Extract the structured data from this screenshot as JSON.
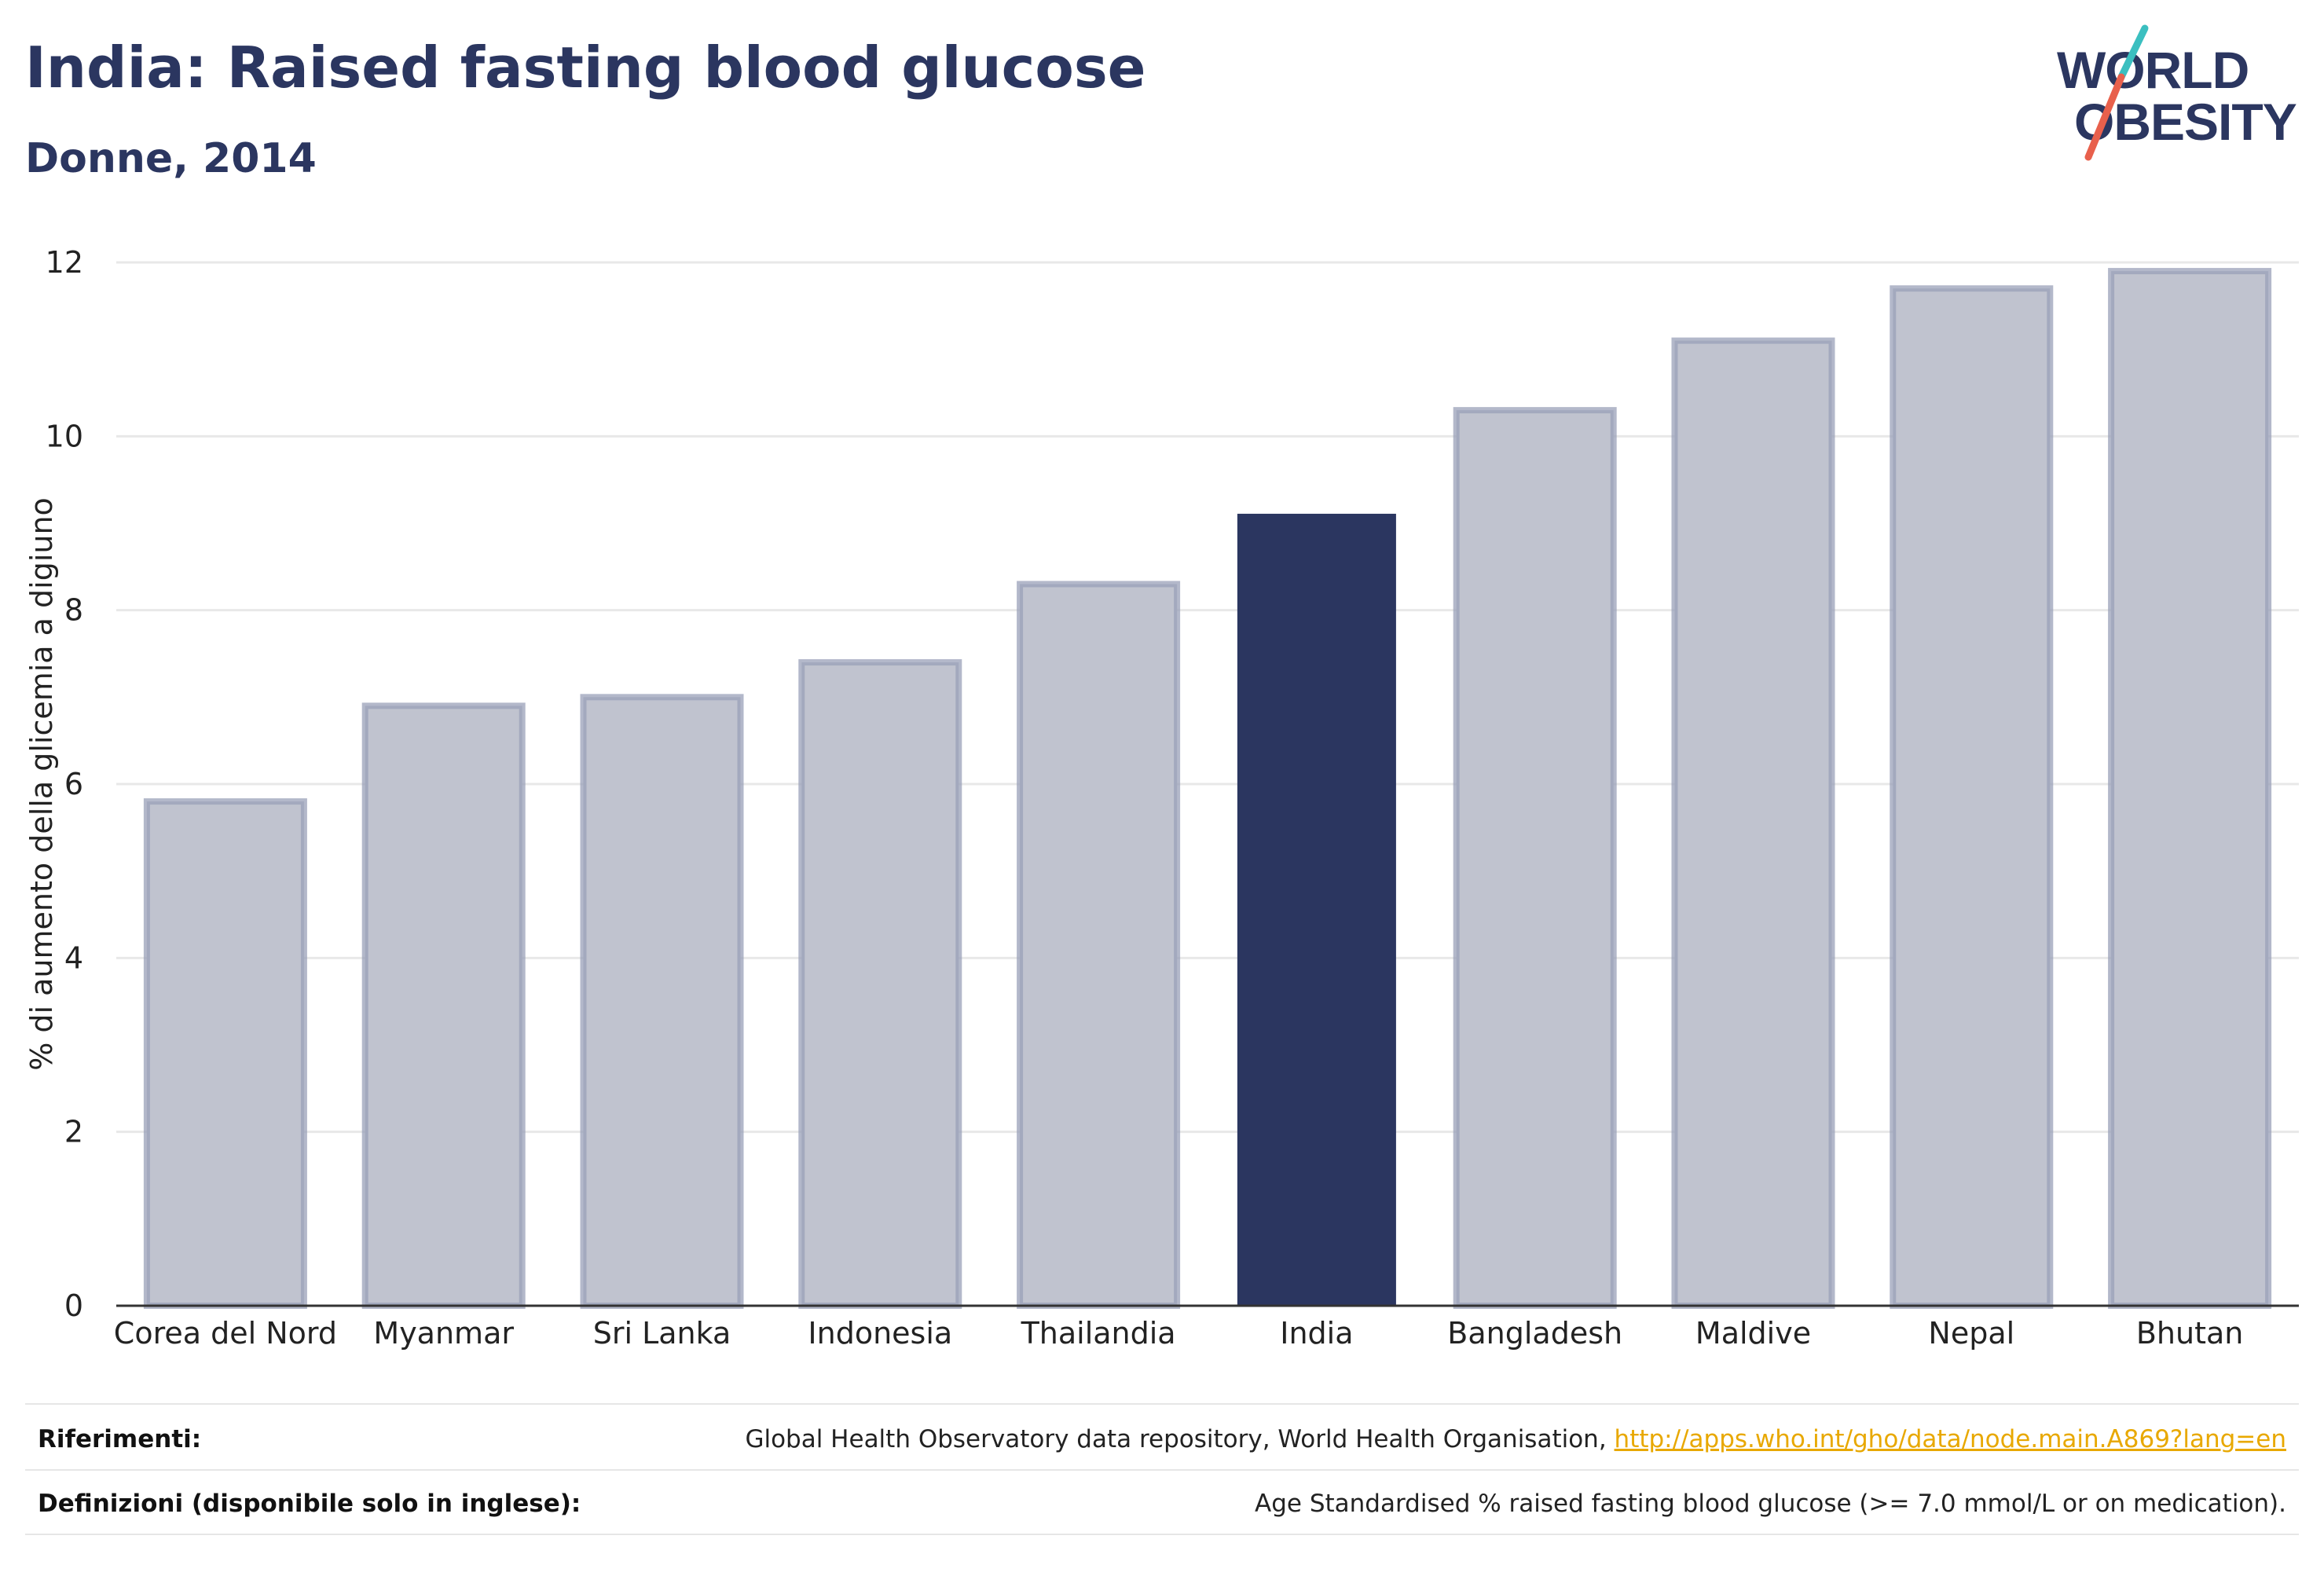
{
  "header": {
    "title": "India: Raised fasting blood glucose",
    "subtitle": "Donne, 2014"
  },
  "logo": {
    "line1": "WORLD",
    "line2": "OBESITY",
    "colors": {
      "text": "#2b3660",
      "slash_red": "#e8604c",
      "slash_teal": "#3bbfc0"
    }
  },
  "chart_data": {
    "type": "bar",
    "categories": [
      "Corea del Nord",
      "Myanmar",
      "Sri Lanka",
      "Indonesia",
      "Thailandia",
      "India",
      "Bangladesh",
      "Maldive",
      "Nepal",
      "Bhutan"
    ],
    "values": [
      5.8,
      6.9,
      7.0,
      7.4,
      8.3,
      9.1,
      10.3,
      11.1,
      11.7,
      11.9
    ],
    "highlight": "India",
    "title": "India: Raised fasting blood glucose",
    "subtitle": "Donne, 2014",
    "xlabel": "",
    "ylabel": "% di aumento della glicemia a digiuno",
    "ylim": [
      0,
      12
    ],
    "yticks": [
      0,
      2,
      4,
      6,
      8,
      10,
      12
    ],
    "grid": true,
    "legend": "none",
    "colors": {
      "bar_fill": "#c0c3cf",
      "bar_stroke": "#9aa0b8",
      "highlight_fill": "#2b3660",
      "grid": "#e8e8e8",
      "axis": "#333333"
    }
  },
  "footer": {
    "references_label": "Riferimenti:",
    "references_text": "Global Health Observatory data repository, World Health Organisation, ",
    "references_link": "http://apps.who.int/gho/data/node.main.A869?lang=en",
    "definitions_label": "Definizioni (disponibile solo in inglese):",
    "definitions_text": "Age Standardised % raised fasting blood glucose (>= 7.0 mmol/L or on medication)."
  }
}
